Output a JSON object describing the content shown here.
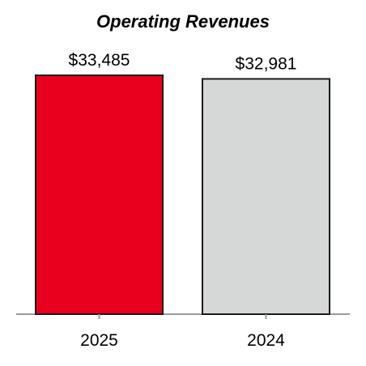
{
  "chart_data": {
    "type": "bar",
    "title": "Operating Revenues",
    "xlabel": "",
    "ylabel": "",
    "categories": [
      "2025",
      "2024"
    ],
    "values": [
      33485,
      32981
    ],
    "value_labels": [
      "$33,485",
      "$32,981"
    ],
    "ylim": [
      0,
      33485
    ],
    "grid": false,
    "legend": "none",
    "colors": [
      "#E8001E",
      "#D6D8D8"
    ],
    "bar_outline_color": "#1A1A1A",
    "axis_color": "#9A9A9A"
  }
}
